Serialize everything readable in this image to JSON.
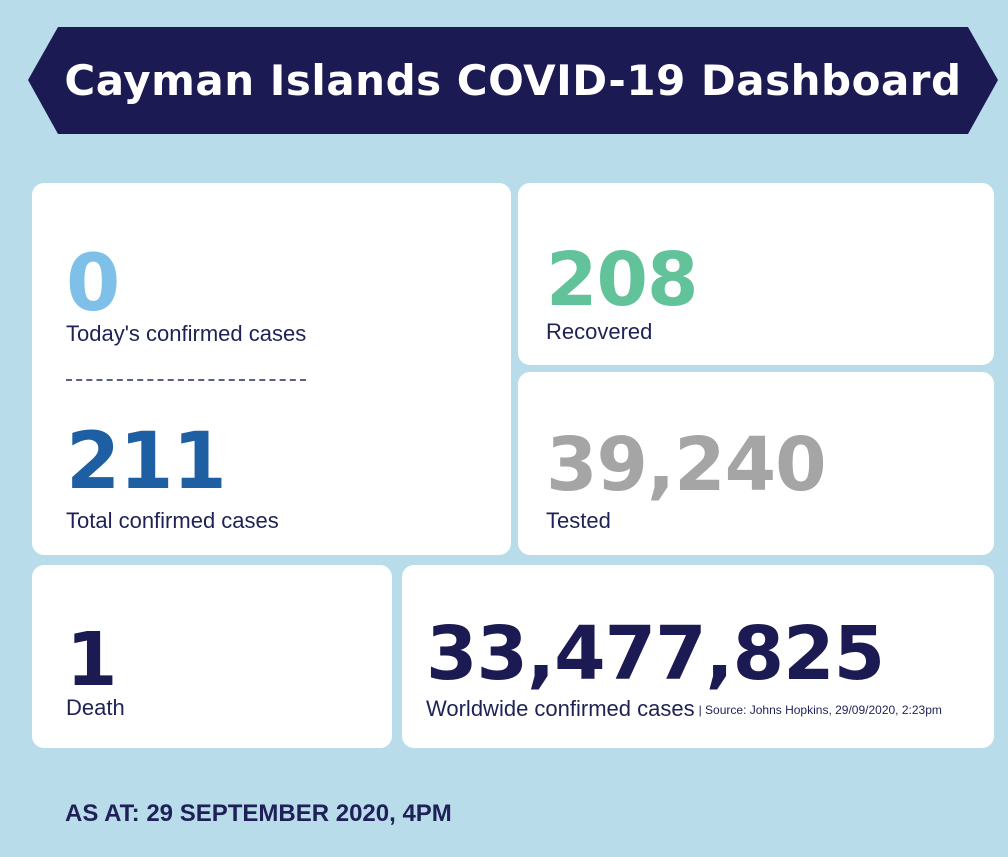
{
  "banner": {
    "title": "Cayman Islands COVID-19 Dashboard"
  },
  "cards": {
    "today": {
      "value": "0",
      "label": "Today's confirmed cases"
    },
    "total": {
      "value": "211",
      "label": "Total confirmed cases"
    },
    "recovered": {
      "value": "208",
      "label": "Recovered"
    },
    "tested": {
      "value": "39,240",
      "label": "Tested"
    },
    "death": {
      "value": "1",
      "label": "Death"
    },
    "worldwide": {
      "value": "33,477,825",
      "label": "Worldwide confirmed cases",
      "source": "| Source: Johns Hopkins, 29/09/2020, 2:23pm"
    }
  },
  "footer": {
    "as_at": "AS AT: 29 SEPTEMBER 2020, 4PM"
  },
  "colors": {
    "background": "#b9dcea",
    "banner": "#1c1a52",
    "today_value": "#7fc0e8",
    "total_value": "#1d5fa2",
    "recovered_value": "#62c39a",
    "tested_value": "#a5a5a5",
    "dark_value": "#1c1a52"
  }
}
